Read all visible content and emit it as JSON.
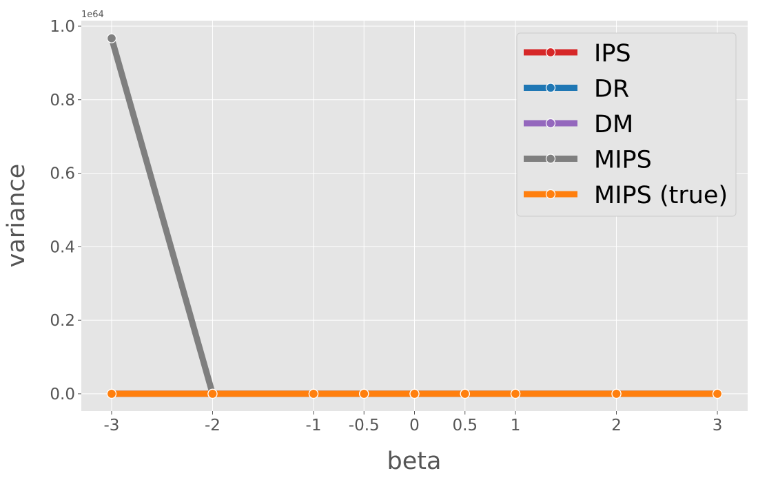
{
  "chart_data": {
    "type": "line",
    "xlabel": "beta",
    "ylabel": "variance",
    "y_offset_label": "1e64",
    "x": [
      -3,
      -2,
      -1,
      -0.5,
      0,
      0.5,
      1,
      2,
      3
    ],
    "x_tick_labels": [
      "-3",
      "-2",
      "-1",
      "-0.5",
      "0",
      "0.5",
      "1",
      "2",
      "3"
    ],
    "xlim": [
      -3.3,
      3.3
    ],
    "yticks": [
      0.0,
      0.2,
      0.4,
      0.6,
      0.8,
      1.0
    ],
    "y_tick_labels": [
      "0.0",
      "0.2",
      "0.4",
      "0.6",
      "0.8",
      "1.0"
    ],
    "ylim": [
      -0.047,
      1.015
    ],
    "grid": true,
    "legend_position": "top-right",
    "series": [
      {
        "name": "IPS",
        "color": "#d62728",
        "values": [
          0,
          0,
          0,
          0,
          0,
          0,
          0,
          0,
          0
        ]
      },
      {
        "name": "DR",
        "color": "#1f77b4",
        "values": [
          0,
          0,
          0,
          0,
          0,
          0,
          0,
          0,
          0
        ]
      },
      {
        "name": "DM",
        "color": "#9467bd",
        "values": [
          0,
          0,
          0,
          0,
          0,
          0,
          0,
          0,
          0
        ]
      },
      {
        "name": "MIPS",
        "color": "#7f7f7f",
        "values": [
          0.967,
          0,
          0,
          0,
          0,
          0,
          0,
          0,
          0
        ]
      },
      {
        "name": "MIPS (true)",
        "color": "#ff7f0e",
        "values": [
          0,
          0,
          0,
          0,
          0,
          0,
          0,
          0,
          0
        ]
      }
    ]
  }
}
